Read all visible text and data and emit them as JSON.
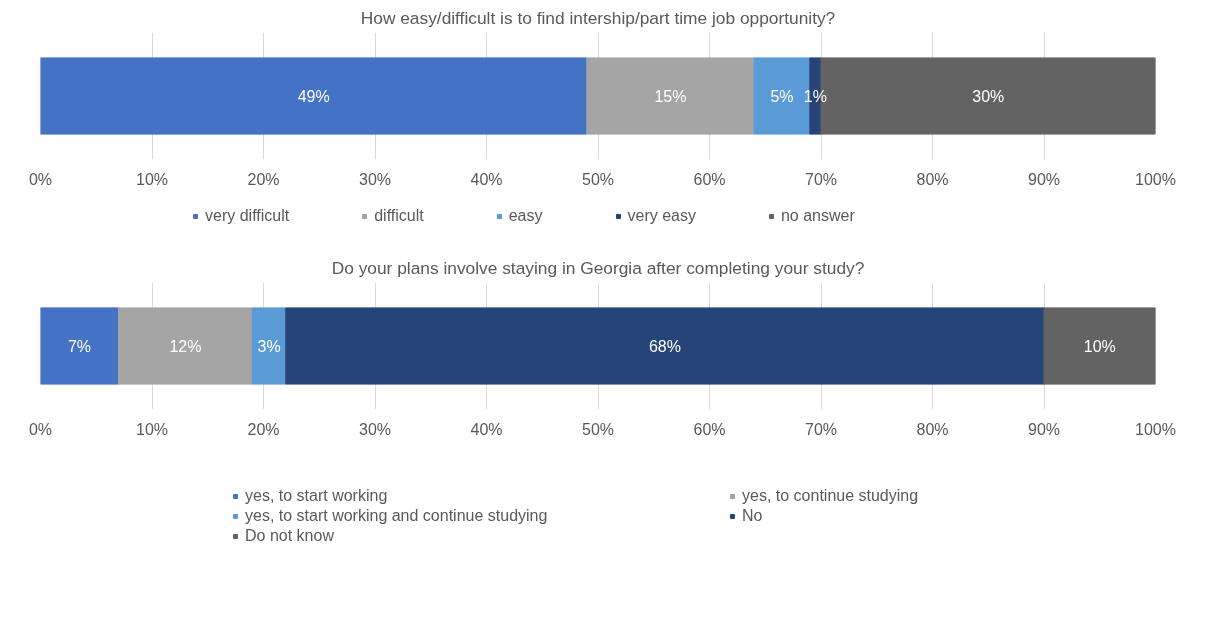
{
  "chart_data": [
    {
      "type": "bar",
      "orientation": "horizontal",
      "stacked": true,
      "title": "How easy/difficult is to find intership/part time job opportunity?",
      "categories": [
        null
      ],
      "series": [
        {
          "name": "very difficult",
          "color": "#4472c4",
          "values": [
            49
          ],
          "value_labels": [
            "49%"
          ]
        },
        {
          "name": "difficult",
          "color": "#a5a5a5",
          "values": [
            15
          ],
          "value_labels": [
            "15%"
          ]
        },
        {
          "name": "easy",
          "color": "#5b9bd5",
          "values": [
            5
          ],
          "value_labels": [
            "5%"
          ]
        },
        {
          "name": "very easy",
          "color": "#264478",
          "values": [
            1
          ],
          "value_labels": [
            "1%"
          ]
        },
        {
          "name": "no answer",
          "color": "#636363",
          "values": [
            30
          ],
          "value_labels": [
            "30%"
          ]
        }
      ],
      "xlim": [
        0,
        100
      ],
      "xticks": [
        {
          "value": 0,
          "label": "0%"
        },
        {
          "value": 10,
          "label": "10%"
        },
        {
          "value": 20,
          "label": "20%"
        },
        {
          "value": 30,
          "label": "30%"
        },
        {
          "value": 40,
          "label": "40%"
        },
        {
          "value": 50,
          "label": "50%"
        },
        {
          "value": 60,
          "label": "60%"
        },
        {
          "value": 70,
          "label": "70%"
        },
        {
          "value": 80,
          "label": "80%"
        },
        {
          "value": 90,
          "label": "90%"
        },
        {
          "value": 100,
          "label": "100%"
        }
      ],
      "grid": "x",
      "legend": "bottom",
      "tick_labels": "x"
    },
    {
      "type": "bar",
      "orientation": "horizontal",
      "stacked": true,
      "title": "Do your plans involve staying in Georgia after completing your study?",
      "categories": [
        null
      ],
      "series": [
        {
          "name": "yes, to start working",
          "color": "#4472c4",
          "values": [
            7
          ],
          "value_labels": [
            "7%"
          ]
        },
        {
          "name": "yes, to continue studying",
          "color": "#a5a5a5",
          "values": [
            12
          ],
          "value_labels": [
            "12%"
          ]
        },
        {
          "name": "yes, to start working and continue studying",
          "color": "#5b9bd5",
          "values": [
            3
          ],
          "value_labels": [
            "3%"
          ]
        },
        {
          "name": "No",
          "color": "#264478",
          "values": [
            68
          ],
          "value_labels": [
            "68%"
          ]
        },
        {
          "name": "Do not know",
          "color": "#636363",
          "values": [
            10
          ],
          "value_labels": [
            "10%"
          ]
        }
      ],
      "xlim": [
        0,
        100
      ],
      "xticks": [
        {
          "value": 0,
          "label": "0%"
        },
        {
          "value": 10,
          "label": "10%"
        },
        {
          "value": 20,
          "label": "20%"
        },
        {
          "value": 30,
          "label": "30%"
        },
        {
          "value": 40,
          "label": "40%"
        },
        {
          "value": 50,
          "label": "50%"
        },
        {
          "value": 60,
          "label": "60%"
        },
        {
          "value": 70,
          "label": "70%"
        },
        {
          "value": 80,
          "label": "80%"
        },
        {
          "value": 90,
          "label": "90%"
        },
        {
          "value": 100,
          "label": "100%"
        }
      ],
      "grid": "x",
      "legend": "bottom",
      "tick_labels": "x"
    }
  ]
}
